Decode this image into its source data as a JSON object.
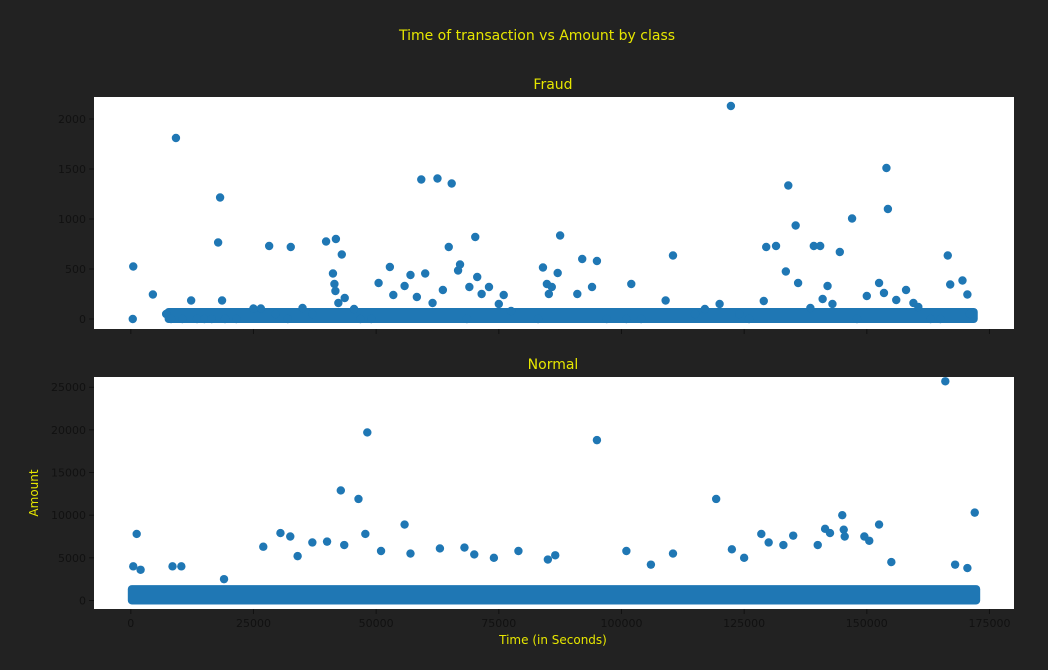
{
  "title": "Time of transaction vs Amount by class",
  "chart_data": [
    {
      "type": "scatter",
      "title": "Fraud",
      "xlabel": "",
      "ylabel": "",
      "xlim": [
        -7500,
        180000
      ],
      "ylim": [
        -100,
        2220
      ],
      "yticks": [
        0,
        500,
        1000,
        1500,
        2000
      ],
      "xticks": [
        0,
        25000,
        50000,
        75000,
        100000,
        125000,
        150000,
        175000
      ],
      "show_xtick_labels": false,
      "grid": false,
      "color": "#1f77b4",
      "points": [
        [
          400,
          0
        ],
        [
          500,
          525
        ],
        [
          4500,
          245
        ],
        [
          7200,
          50
        ],
        [
          8200,
          0
        ],
        [
          9200,
          1810
        ],
        [
          10500,
          0
        ],
        [
          12300,
          185
        ],
        [
          13500,
          0
        ],
        [
          15000,
          0
        ],
        [
          16500,
          0
        ],
        [
          17800,
          765
        ],
        [
          18200,
          1215
        ],
        [
          18600,
          185
        ],
        [
          19200,
          0
        ],
        [
          21500,
          0
        ],
        [
          25000,
          105
        ],
        [
          26500,
          105
        ],
        [
          28200,
          730
        ],
        [
          29500,
          50
        ],
        [
          32000,
          0
        ],
        [
          32600,
          720
        ],
        [
          35000,
          110
        ],
        [
          37000,
          50
        ],
        [
          39800,
          775
        ],
        [
          41200,
          455
        ],
        [
          41500,
          350
        ],
        [
          41700,
          280
        ],
        [
          41800,
          800
        ],
        [
          42300,
          160
        ],
        [
          43000,
          645
        ],
        [
          43600,
          210
        ],
        [
          45500,
          100
        ],
        [
          46800,
          0
        ],
        [
          49000,
          0
        ],
        [
          50500,
          360
        ],
        [
          52800,
          520
        ],
        [
          53500,
          240
        ],
        [
          55800,
          330
        ],
        [
          57000,
          440
        ],
        [
          58300,
          220
        ],
        [
          59200,
          1395
        ],
        [
          60000,
          455
        ],
        [
          61500,
          160
        ],
        [
          62500,
          1405
        ],
        [
          63600,
          290
        ],
        [
          64800,
          720
        ],
        [
          65400,
          1355
        ],
        [
          66700,
          485
        ],
        [
          67100,
          545
        ],
        [
          68500,
          0
        ],
        [
          69000,
          320
        ],
        [
          70200,
          820
        ],
        [
          70600,
          420
        ],
        [
          71500,
          250
        ],
        [
          73000,
          320
        ],
        [
          75000,
          150
        ],
        [
          76000,
          240
        ],
        [
          77500,
          80
        ],
        [
          83000,
          0
        ],
        [
          84000,
          515
        ],
        [
          84800,
          350
        ],
        [
          85200,
          250
        ],
        [
          85800,
          320
        ],
        [
          87000,
          460
        ],
        [
          87500,
          835
        ],
        [
          91000,
          250
        ],
        [
          92000,
          600
        ],
        [
          94000,
          320
        ],
        [
          95000,
          580
        ],
        [
          97000,
          0
        ],
        [
          101000,
          0
        ],
        [
          102000,
          350
        ],
        [
          104000,
          0
        ],
        [
          109000,
          185
        ],
        [
          110500,
          635
        ],
        [
          115000,
          50
        ],
        [
          117000,
          100
        ],
        [
          120000,
          150
        ],
        [
          122300,
          2130
        ],
        [
          124000,
          50
        ],
        [
          126000,
          0
        ],
        [
          129000,
          180
        ],
        [
          129500,
          720
        ],
        [
          131500,
          730
        ],
        [
          133500,
          475
        ],
        [
          134000,
          1335
        ],
        [
          135500,
          935
        ],
        [
          136000,
          360
        ],
        [
          138500,
          110
        ],
        [
          139200,
          730
        ],
        [
          140500,
          730
        ],
        [
          141000,
          200
        ],
        [
          142000,
          330
        ],
        [
          143000,
          150
        ],
        [
          144500,
          670
        ],
        [
          147000,
          1005
        ],
        [
          148000,
          0
        ],
        [
          150000,
          230
        ],
        [
          152500,
          360
        ],
        [
          153500,
          260
        ],
        [
          154000,
          1510
        ],
        [
          154300,
          1100
        ],
        [
          156000,
          190
        ],
        [
          158000,
          290
        ],
        [
          159500,
          160
        ],
        [
          160500,
          120
        ],
        [
          163000,
          0
        ],
        [
          165000,
          0
        ],
        [
          166500,
          635
        ],
        [
          167000,
          345
        ],
        [
          169500,
          385
        ],
        [
          170500,
          245
        ],
        [
          171000,
          50
        ]
      ],
      "dense_base": {
        "x_start": 7500,
        "x_end": 172000,
        "y_max": 110
      }
    },
    {
      "type": "scatter",
      "title": "Normal",
      "xlabel": "Time (in Seconds)",
      "ylabel": "Amount",
      "xlim": [
        -7500,
        180000
      ],
      "ylim": [
        -1000,
        26200
      ],
      "yticks": [
        0,
        5000,
        10000,
        15000,
        20000,
        25000
      ],
      "xticks": [
        0,
        25000,
        50000,
        75000,
        100000,
        125000,
        150000,
        175000
      ],
      "show_xtick_labels": true,
      "grid": false,
      "color": "#1f77b4",
      "points": [
        [
          1200,
          7800
        ],
        [
          500,
          4000
        ],
        [
          2000,
          3600
        ],
        [
          8500,
          4000
        ],
        [
          10300,
          4000
        ],
        [
          19000,
          2500
        ],
        [
          27000,
          6300
        ],
        [
          30500,
          7900
        ],
        [
          32500,
          7500
        ],
        [
          34000,
          5200
        ],
        [
          37000,
          6800
        ],
        [
          40000,
          6900
        ],
        [
          42800,
          12900
        ],
        [
          43500,
          6500
        ],
        [
          46400,
          11900
        ],
        [
          47800,
          7800
        ],
        [
          48200,
          19700
        ],
        [
          51000,
          5800
        ],
        [
          55800,
          8900
        ],
        [
          57000,
          5500
        ],
        [
          63000,
          6100
        ],
        [
          68000,
          6200
        ],
        [
          70000,
          5400
        ],
        [
          74000,
          5000
        ],
        [
          79000,
          5800
        ],
        [
          85000,
          4800
        ],
        [
          86500,
          5300
        ],
        [
          95000,
          18800
        ],
        [
          101000,
          5800
        ],
        [
          106000,
          4200
        ],
        [
          110500,
          5500
        ],
        [
          119300,
          11900
        ],
        [
          122500,
          6000
        ],
        [
          125000,
          5000
        ],
        [
          128500,
          7800
        ],
        [
          130000,
          6800
        ],
        [
          133000,
          6500
        ],
        [
          135000,
          7600
        ],
        [
          140000,
          6500
        ],
        [
          141500,
          8400
        ],
        [
          142500,
          7900
        ],
        [
          145000,
          10000
        ],
        [
          145300,
          8300
        ],
        [
          145500,
          7500
        ],
        [
          149500,
          7500
        ],
        [
          150500,
          7000
        ],
        [
          152500,
          8900
        ],
        [
          155000,
          4500
        ],
        [
          166000,
          25700
        ],
        [
          172000,
          10300
        ],
        [
          168000,
          4200
        ],
        [
          170500,
          3800
        ]
      ],
      "dense_base": {
        "x_start": 0,
        "x_end": 172500,
        "y_max": 1800
      }
    }
  ]
}
